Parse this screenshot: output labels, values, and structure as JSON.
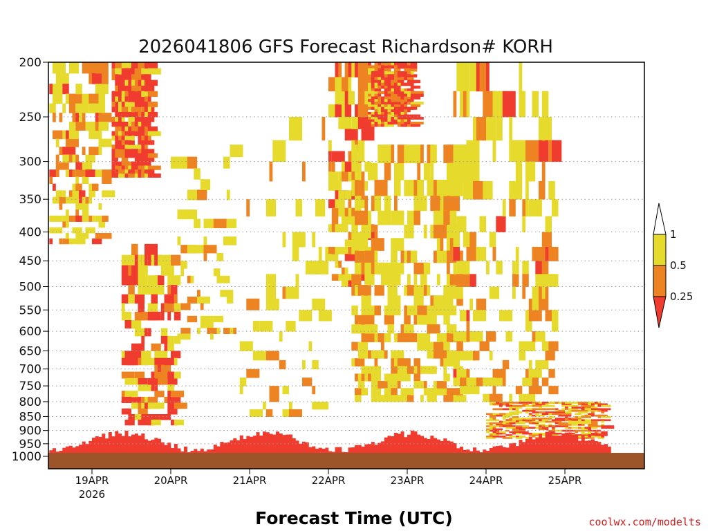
{
  "chart_data": {
    "type": "heatmap",
    "title": "2026041806 GFS Forecast Richardson# KORH",
    "xlabel": "Forecast Time (UTC)",
    "ylabel": "",
    "credit": "coolwx.com/modelts",
    "y_axis": {
      "scale": "pressure (reversed)",
      "range": [
        1000,
        200
      ],
      "ticks": [
        "200",
        "250",
        "300",
        "350",
        "400",
        "450",
        "500",
        "550",
        "600",
        "650",
        "700",
        "750",
        "800",
        "850",
        "900",
        "950",
        "1000"
      ]
    },
    "x_axis": {
      "range": [
        "18APR 06Z",
        "25APR 18Z"
      ],
      "ticks": [
        {
          "label": "19APR",
          "sub": "2026"
        },
        {
          "label": "20APR",
          "sub": ""
        },
        {
          "label": "21APR",
          "sub": ""
        },
        {
          "label": "22APR",
          "sub": ""
        },
        {
          "label": "23APR",
          "sub": ""
        },
        {
          "label": "24APR",
          "sub": ""
        },
        {
          "label": "25APR",
          "sub": ""
        }
      ]
    },
    "grid": "dotted horizontal lines at pressure levels",
    "legend": {
      "placement": "right",
      "levels": [
        "1",
        "0.5",
        "0.25"
      ],
      "bins": [
        {
          "range": "< 0.25",
          "color": "#f03c2e"
        },
        {
          "range": "0.25 - 0.5",
          "color": "#ee8322"
        },
        {
          "range": "0.5 - 1",
          "color": "#e6da2d"
        },
        {
          "range": "> 1",
          "color": "#ffffff"
        }
      ]
    },
    "ground_color": "#9c5428",
    "regions": [
      {
        "date": "18APR-19APR",
        "levels": "200-400",
        "dominant": "< 0.25 / 0.25-0.5 / 0.5-1 mixed"
      },
      {
        "date": "19APR 12Z-20APR 06Z",
        "levels": "200-300",
        "dominant": "< 0.25"
      },
      {
        "date": "19APR 12Z-21APR 00Z",
        "levels": "450-850",
        "dominant": "< 0.25 with 0.5-1 fringes"
      },
      {
        "date": "21APR-22APR",
        "levels": "280-600",
        "dominant": "0.5-1 scattered"
      },
      {
        "date": "22APR 12Z-25APR 18Z",
        "levels": "200-850",
        "dominant": "0.5-1 with 0.25-0.5 and < 0.25 patches"
      },
      {
        "date": "18APR-25APR",
        "levels": "850-1000",
        "dominant": "< 0.25 boundary layer"
      }
    ]
  },
  "colors": {
    "lt025": "#f03c2e",
    "b025_05": "#ee8322",
    "b05_1": "#e6da2d",
    "gt1": "#ffffff",
    "ground": "#9c5428"
  }
}
